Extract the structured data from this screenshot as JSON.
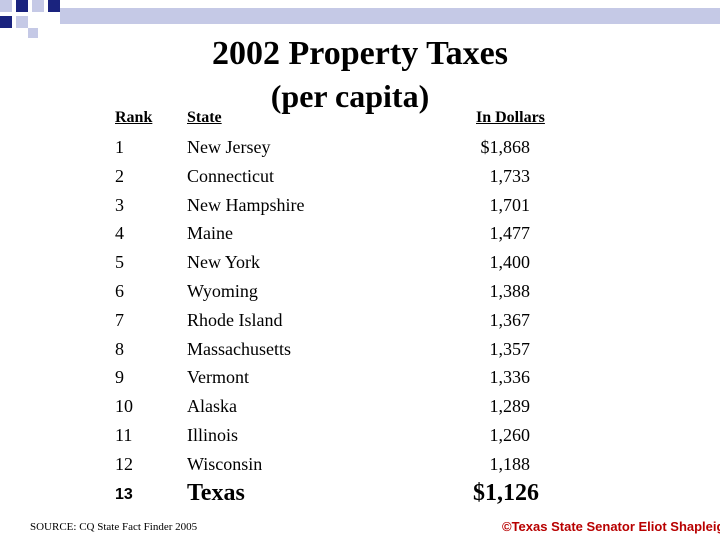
{
  "title": "2002 Property Taxes",
  "subtitle": "(per capita)",
  "headers": {
    "rank": "Rank",
    "state": "State",
    "dollars": "In Dollars"
  },
  "rows": [
    {
      "rank": "1",
      "state": "New Jersey",
      "amount": "$1,868"
    },
    {
      "rank": "2",
      "state": "Connecticut",
      "amount": "1,733"
    },
    {
      "rank": "3",
      "state": "New Hampshire",
      "amount": "1,701"
    },
    {
      "rank": "4",
      "state": "Maine",
      "amount": "1,477"
    },
    {
      "rank": "5",
      "state": "New York",
      "amount": "1,400"
    },
    {
      "rank": "6",
      "state": "Wyoming",
      "amount": "1,388"
    },
    {
      "rank": "7",
      "state": "Rhode Island",
      "amount": "1,367"
    },
    {
      "rank": "8",
      "state": "Massachusetts",
      "amount": "1,357"
    },
    {
      "rank": "9",
      "state": "Vermont",
      "amount": "1,336"
    },
    {
      "rank": "10",
      "state": "Alaska",
      "amount": "1,289"
    },
    {
      "rank": "11",
      "state": "Illinois",
      "amount": "1,260"
    },
    {
      "rank": "12",
      "state": "Wisconsin",
      "amount": "1,188"
    }
  ],
  "highlight": {
    "rank": "13",
    "state": "Texas",
    "amount": "$1,126"
  },
  "source": "SOURCE: CQ State Fact Finder 2005",
  "credit": "©Texas State Senator Eliot Shapleigh",
  "colors": {
    "deco_dark": "#1a237e",
    "deco_light": "#c5c9e6",
    "credit": "#b80000"
  }
}
